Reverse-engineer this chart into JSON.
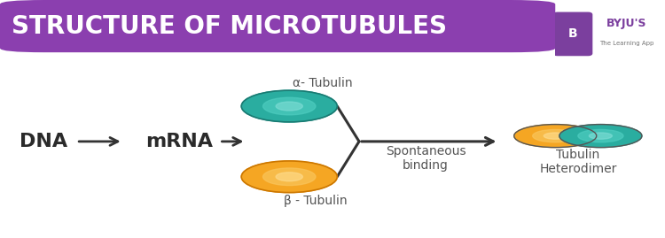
{
  "title": "STRUCTURE OF MICROTUBULES",
  "title_bg_color": "#8B3FAF",
  "title_text_color": "#FFFFFF",
  "bg_color": "#FFFFFF",
  "dna_label": "DNA",
  "mrna_label": "mRNA",
  "alpha_label": "α- Tubulin",
  "beta_label": "β - Tubulin",
  "spontaneous_label": "Spontaneous\nbinding",
  "heterodimer_label": "Tubulin\nHeterodimer",
  "teal_color": "#2AADA0",
  "teal_dark": "#1A8A80",
  "orange_color": "#F5A623",
  "orange_dark": "#CC8800",
  "arrow_color": "#333333",
  "label_color": "#555555",
  "dna_mrna_fontsize": 16,
  "label_fontsize": 10,
  "title_fontsize": 20,
  "byju_bg": "#7B3F9E",
  "fig_width": 7.5,
  "fig_height": 2.69,
  "dpi": 100
}
